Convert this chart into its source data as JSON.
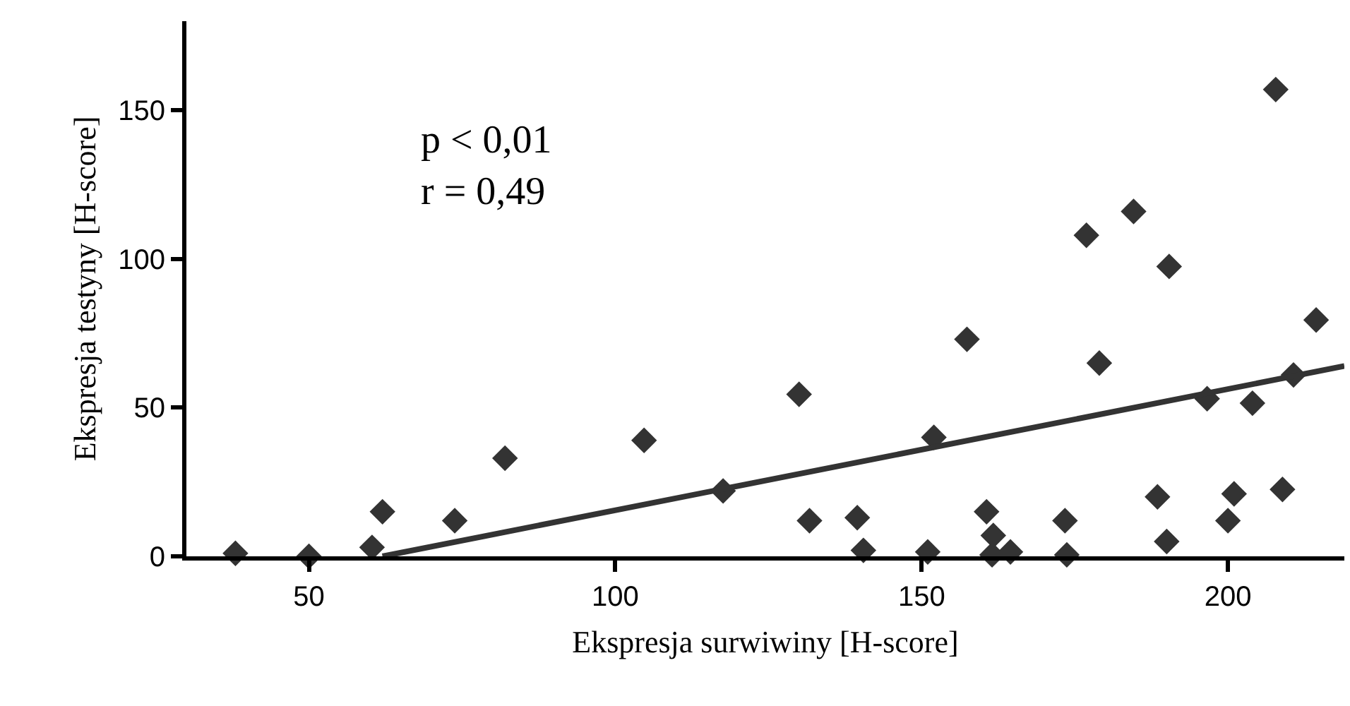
{
  "chart_data": {
    "type": "scatter",
    "xlabel": "Ekspresja surwiwiny [H-score]",
    "ylabel": "Ekspresja testyny [H-score]",
    "annotations": [
      "p < 0,01\nr = 0,49"
    ],
    "xlim": [
      30,
      219
    ],
    "ylim": [
      0,
      180
    ],
    "xticks": [
      50,
      100,
      150,
      200
    ],
    "yticks": [
      0,
      50,
      100,
      150
    ],
    "grid": false,
    "series": [
      {
        "color": "#333333",
        "marker": "diamond",
        "x": [
          38,
          50,
          60.3,
          62,
          73.8,
          82,
          104.7,
          117.6,
          130,
          131.7,
          139.5,
          140.5,
          151,
          152,
          157.4,
          160.6,
          161.7,
          161.5,
          164.5,
          173.4,
          173.7,
          176.9,
          179,
          184.6,
          188.5,
          190,
          190.4,
          196.6,
          200,
          201,
          204,
          207.8,
          208.9,
          210.7,
          214.4
        ],
        "values": [
          1,
          0,
          3,
          15,
          12,
          33,
          39,
          22,
          54.5,
          12,
          13,
          2,
          1.5,
          40,
          73,
          15,
          7,
          0.5,
          1.5,
          12,
          0.5,
          108,
          65,
          116,
          20,
          5,
          97.5,
          53,
          12,
          21,
          51.5,
          157,
          22.5,
          61,
          79.5
        ]
      },
      {
        "type": "line",
        "color": "#333333",
        "x": [
          62,
          219
        ],
        "values": [
          0,
          64
        ],
        "line_style": "solid",
        "marker": "none"
      }
    ]
  }
}
